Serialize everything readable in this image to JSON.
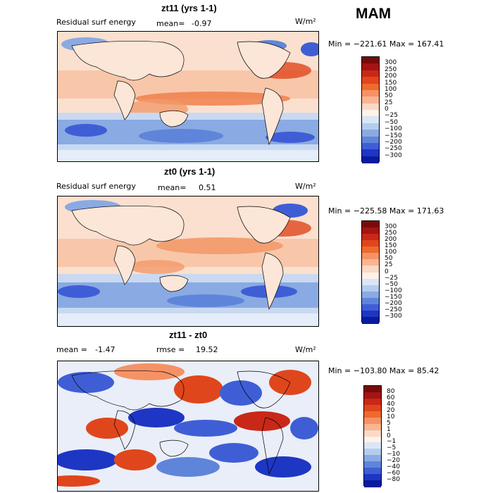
{
  "season": "MAM",
  "panels": [
    {
      "title": "zt11 (yrs 1-1)",
      "left_label": "Residual surf energy",
      "mean_label": "mean=",
      "mean_value": "-0.97",
      "units": "W/m²",
      "min_max": "Min = −221.61 Max = 167.41",
      "colorbar": {
        "labels": [
          "300",
          "250",
          "200",
          "150",
          "100",
          "50",
          "25",
          "0",
          "−25",
          "−50",
          "−100",
          "−150",
          "−200",
          "−250",
          "−300"
        ],
        "colors": [
          "#7a0a0a",
          "#a41414",
          "#c92818",
          "#e0461c",
          "#ee6a2e",
          "#f59265",
          "#f9b592",
          "#fbd9c4",
          "#fff2e8",
          "#d9e6f5",
          "#b4ccee",
          "#8aaae3",
          "#5f85da",
          "#3f5ed6",
          "#1e36c4",
          "#0a1a9c"
        ]
      },
      "map_style": "residual_a"
    },
    {
      "title": "zt0 (yrs 1-1)",
      "left_label": "Residual surf energy",
      "mean_label": "mean=",
      "mean_value": "0.51",
      "units": "W/m²",
      "min_max": "Min = −225.58 Max = 171.63",
      "colorbar": {
        "labels": [
          "300",
          "250",
          "200",
          "150",
          "100",
          "50",
          "25",
          "0",
          "−25",
          "−50",
          "−100",
          "−150",
          "−200",
          "−250",
          "−300"
        ],
        "colors": [
          "#7a0a0a",
          "#a41414",
          "#c92818",
          "#e0461c",
          "#ee6a2e",
          "#f59265",
          "#f9b592",
          "#fbd9c4",
          "#fff2e8",
          "#d9e6f5",
          "#b4ccee",
          "#8aaae3",
          "#5f85da",
          "#3f5ed6",
          "#1e36c4",
          "#0a1a9c"
        ]
      },
      "map_style": "residual_b"
    },
    {
      "title": "zt11 - zt0",
      "left_label": "mean =",
      "mean_label": "",
      "mean_value": "-1.47",
      "rmse_label": "rmse =",
      "rmse_value": "19.52",
      "units": "W/m²",
      "min_max": "Min = −103.80 Max = 85.42",
      "colorbar": {
        "labels": [
          "80",
          "60",
          "40",
          "20",
          "10",
          "5",
          "1",
          "0",
          "−1",
          "−5",
          "−10",
          "−20",
          "−40",
          "−60",
          "−80"
        ],
        "colors": [
          "#7a0a0a",
          "#a41414",
          "#c92818",
          "#e0461c",
          "#ee6a2e",
          "#f59265",
          "#f9b592",
          "#fbd9c4",
          "#fff2e8",
          "#d9e6f5",
          "#b4ccee",
          "#8aaae3",
          "#5f85da",
          "#3f5ed6",
          "#1e36c4",
          "#0a1a9c"
        ]
      },
      "map_style": "difference"
    }
  ]
}
